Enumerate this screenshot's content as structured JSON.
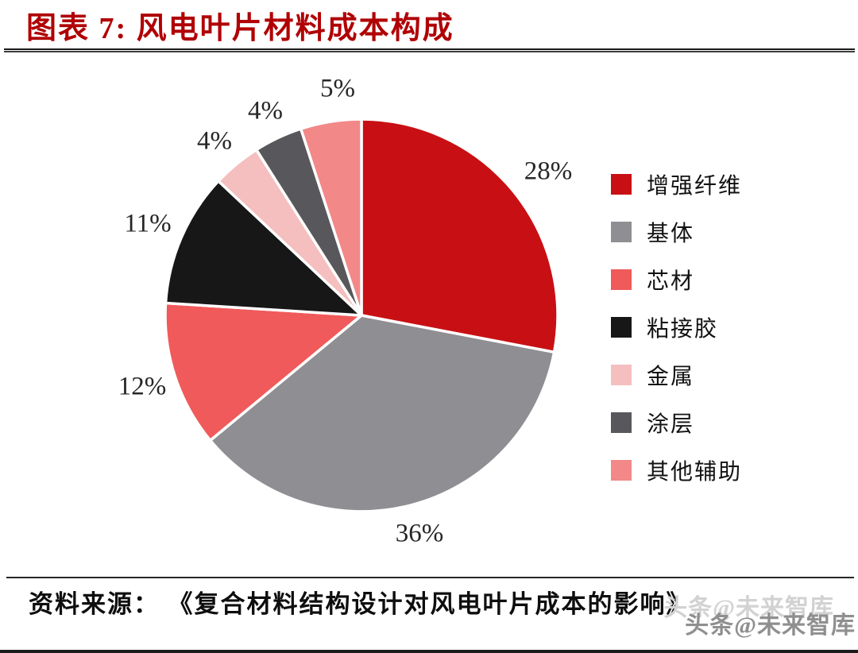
{
  "header": {
    "title": "图表 7: 风电叶片材料成本构成"
  },
  "chart_data": {
    "type": "pie",
    "title": "风电叶片材料成本构成",
    "start_angle_deg": 0,
    "direction": "clockwise",
    "legend_position": "right",
    "slices": [
      {
        "label": "增强纤维",
        "value": 28,
        "pct_label": "28%",
        "color": "#c81014"
      },
      {
        "label": "基体",
        "value": 36,
        "pct_label": "36%",
        "color": "#8f8f93"
      },
      {
        "label": "芯材",
        "value": 12,
        "pct_label": "12%",
        "color": "#f05a5a"
      },
      {
        "label": "粘接胶",
        "value": 11,
        "pct_label": "11%",
        "color": "#171717"
      },
      {
        "label": "金属",
        "value": 4,
        "pct_label": "4%",
        "color": "#f5bfbf"
      },
      {
        "label": "涂层",
        "value": 4,
        "pct_label": "4%",
        "color": "#58585c"
      },
      {
        "label": "其他辅助",
        "value": 5,
        "pct_label": "5%",
        "color": "#f28888"
      }
    ]
  },
  "footer": {
    "source_label": "资料来源：",
    "source_text": "《复合材料结构设计对风电叶片成本的影响》",
    "watermark": "头条@未来智库"
  },
  "colors": {
    "title_red": "#b00004",
    "rule_dark": "#262626",
    "watermark_gray": "#8f8f8f"
  }
}
